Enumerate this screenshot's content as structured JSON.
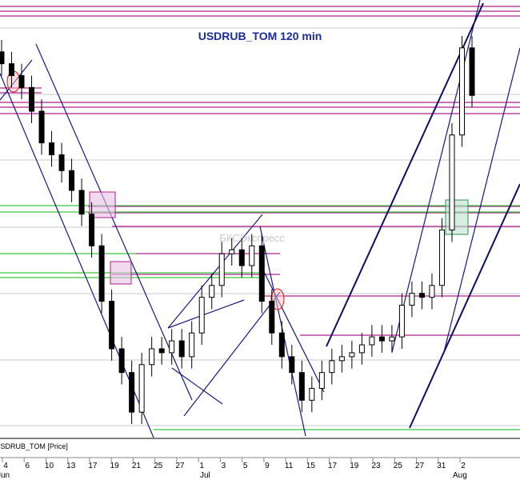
{
  "chart_data": {
    "type": "candlestick",
    "title": "USDRUB_TOM 120 min",
    "instrument_label": "USDRUB_TOM [Price]",
    "watermark": "БКСЭкспресс",
    "x_labels": [
      "4",
      "6",
      "10",
      "13",
      "17",
      "19",
      "21",
      "25",
      "27",
      "1",
      "3",
      "5",
      "9",
      "11",
      "15",
      "17",
      "19",
      "23",
      "25",
      "27",
      "31",
      "2"
    ],
    "months": [
      "Jun",
      "Jul",
      "Aug"
    ],
    "color": "#000000",
    "open": [
      64.8,
      64.68,
      64.56,
      64.44,
      64.2,
      63.88,
      63.76,
      63.6,
      63.4,
      63.16,
      62.84,
      62.28,
      61.8,
      61.56,
      61.16,
      61.64,
      61.8,
      61.76,
      61.88,
      61.72,
      61.96,
      62.32,
      62.44,
      62.76,
      62.8,
      62.64,
      62.84,
      62.28,
      61.96,
      61.72,
      61.56,
      61.28,
      61.4,
      61.56,
      61.68,
      61.72,
      61.76,
      61.84,
      61.92,
      61.88,
      61.92,
      62.24,
      62.36,
      62.32,
      62.44,
      63.0,
      63.96,
      64.84
    ],
    "high": [
      64.92,
      64.8,
      64.68,
      64.56,
      64.32,
      64.0,
      63.88,
      63.72,
      63.52,
      63.28,
      62.96,
      62.4,
      61.92,
      61.68,
      61.76,
      61.92,
      61.92,
      62.0,
      62.0,
      62.08,
      62.44,
      62.56,
      62.88,
      62.92,
      62.92,
      62.96,
      62.96,
      62.4,
      62.08,
      61.84,
      61.68,
      61.52,
      61.68,
      61.8,
      61.84,
      61.88,
      61.96,
      62.04,
      62.04,
      62.04,
      62.36,
      62.48,
      62.48,
      62.56,
      63.12,
      64.08,
      64.96,
      64.96
    ],
    "low": [
      64.56,
      64.44,
      64.32,
      64.08,
      63.76,
      63.64,
      63.48,
      63.28,
      63.04,
      62.72,
      62.16,
      61.68,
      61.44,
      61.04,
      61.04,
      61.52,
      61.64,
      61.64,
      61.6,
      61.6,
      61.84,
      62.2,
      62.32,
      62.64,
      62.52,
      62.52,
      62.16,
      61.84,
      61.6,
      61.44,
      61.16,
      61.16,
      61.28,
      61.44,
      61.56,
      61.6,
      61.64,
      61.72,
      61.76,
      61.76,
      61.8,
      62.12,
      62.2,
      62.2,
      62.32,
      62.88,
      63.84,
      64.24
    ],
    "close": [
      64.68,
      64.56,
      64.44,
      64.2,
      63.88,
      63.76,
      63.6,
      63.4,
      63.16,
      62.84,
      62.28,
      61.8,
      61.56,
      61.16,
      61.64,
      61.8,
      61.76,
      61.88,
      61.72,
      61.96,
      62.32,
      62.44,
      62.76,
      62.8,
      62.64,
      62.84,
      62.28,
      61.96,
      61.72,
      61.56,
      61.28,
      61.4,
      61.56,
      61.68,
      61.72,
      61.76,
      61.84,
      61.92,
      61.88,
      61.92,
      62.24,
      62.36,
      62.32,
      62.44,
      63.0,
      63.96,
      64.84,
      64.36
    ]
  }
}
